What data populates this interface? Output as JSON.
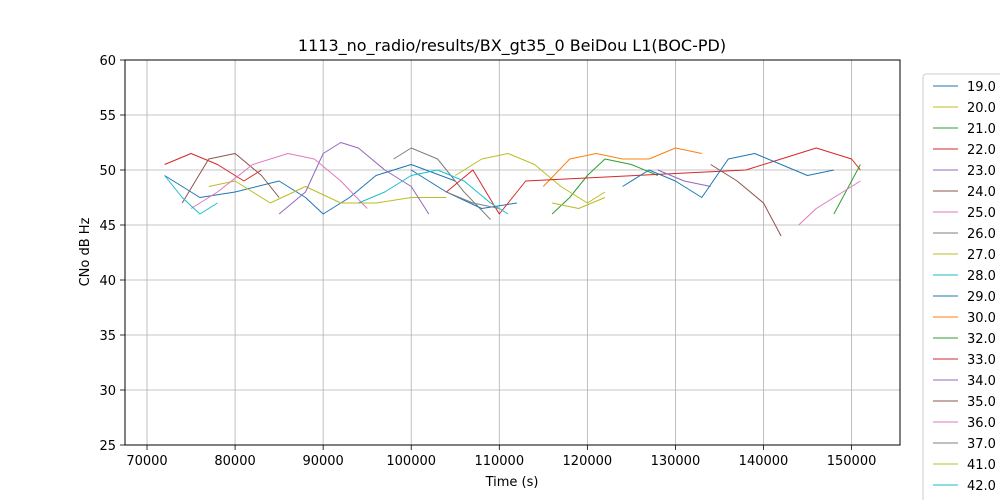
{
  "chart_data": {
    "type": "line",
    "title": "1113_no_radio/results/BX_gt35_0 BeiDou L1(BOC-PD)",
    "xlabel": "Time (s)",
    "ylabel": "CNo dB Hz",
    "xlim": [
      67500,
      155500
    ],
    "ylim": [
      25,
      60
    ],
    "xticks": [
      70000,
      80000,
      90000,
      100000,
      110000,
      120000,
      130000,
      140000,
      150000
    ],
    "xtick_labels": [
      "70000",
      "80000",
      "90000",
      "100000",
      "110000",
      "120000",
      "130000",
      "140000",
      "150000"
    ],
    "yticks": [
      25,
      30,
      35,
      40,
      45,
      50,
      55,
      60
    ],
    "ytick_labels": [
      "25",
      "30",
      "35",
      "40",
      "45",
      "50",
      "55",
      "60"
    ],
    "grid": true,
    "legend_position": "right-outside",
    "series": [
      {
        "name": "19.0",
        "color": "#1f77b4",
        "x": [
          72000,
          76000,
          80000,
          85000,
          88000,
          90000,
          93000,
          96000,
          100000,
          105000
        ],
        "y": [
          49.5,
          47.5,
          48.0,
          49.0,
          47.5,
          46.0,
          47.5,
          49.5,
          50.5,
          49.0
        ]
      },
      {
        "name": "20.0",
        "color": "#bcbd22",
        "x": [
          77000,
          80000,
          84000,
          88000,
          92000,
          96000,
          100000,
          104000
        ],
        "y": [
          48.5,
          49.0,
          47.0,
          48.5,
          47.0,
          47.0,
          47.5,
          47.5
        ]
      },
      {
        "name": "21.0",
        "color": "#2ca02c",
        "x": [
          116000,
          118000,
          120000,
          122000,
          125000,
          128000
        ],
        "y": [
          46.0,
          47.5,
          49.5,
          51.0,
          50.5,
          49.5
        ]
      },
      {
        "name": "22.0",
        "color": "#d62728",
        "x": [
          72000,
          75000,
          78000,
          81000,
          83000
        ],
        "y": [
          50.5,
          51.5,
          50.5,
          49.0,
          50.0
        ]
      },
      {
        "name": "23.0",
        "color": "#9467bd",
        "x": [
          85000,
          88000,
          90000,
          92000,
          94000,
          97000,
          100000,
          102000
        ],
        "y": [
          46.0,
          48.0,
          51.5,
          52.5,
          52.0,
          50.0,
          48.5,
          46.0
        ]
      },
      {
        "name": "24.0",
        "color": "#8c564b",
        "x": [
          74000,
          77000,
          80000,
          83000,
          85000
        ],
        "y": [
          47.0,
          51.0,
          51.5,
          49.5,
          47.5
        ]
      },
      {
        "name": "25.0",
        "color": "#e377c2",
        "x": [
          75000,
          78000,
          82000,
          86000,
          89000,
          92000,
          95000
        ],
        "y": [
          46.5,
          48.0,
          50.5,
          51.5,
          51.0,
          49.0,
          46.5
        ]
      },
      {
        "name": "26.0",
        "color": "#7f7f7f",
        "x": [
          98000,
          100000,
          103000,
          106000,
          109000
        ],
        "y": [
          51.0,
          52.0,
          51.0,
          48.0,
          45.5
        ]
      },
      {
        "name": "27.0",
        "color": "#bcbd22",
        "x": [
          105000,
          108000,
          111000,
          114000,
          117000,
          120000,
          122000
        ],
        "y": [
          49.5,
          51.0,
          51.5,
          50.5,
          48.5,
          47.0,
          48.0
        ]
      },
      {
        "name": "28.0",
        "color": "#17becf",
        "x": [
          72000,
          74000,
          76000,
          78000
        ],
        "y": [
          49.5,
          47.5,
          46.0,
          47.0
        ]
      },
      {
        "name": "29.0",
        "color": "#1f77b4",
        "x": [
          100000,
          104000,
          108000,
          112000
        ],
        "y": [
          50.0,
          48.0,
          46.5,
          47.0
        ]
      },
      {
        "name": "30.0",
        "color": "#ff7f0e",
        "x": [
          115000,
          118000,
          121000,
          124000,
          127000,
          130000,
          133000
        ],
        "y": [
          48.5,
          51.0,
          51.5,
          51.0,
          51.0,
          52.0,
          51.5
        ]
      },
      {
        "name": "32.0",
        "color": "#2ca02c",
        "x": [
          148000,
          150000,
          151000
        ],
        "y": [
          46.0,
          49.0,
          50.5
        ]
      },
      {
        "name": "33.0",
        "color": "#d62728",
        "x": [
          104000,
          107000,
          110000,
          113000,
          138000,
          142000,
          146000,
          150000,
          151000
        ],
        "y": [
          48.0,
          50.0,
          46.0,
          49.0,
          50.0,
          51.0,
          52.0,
          51.0,
          50.0
        ]
      },
      {
        "name": "34.0",
        "color": "#9467bd",
        "x": [
          128000,
          131000,
          134000
        ],
        "y": [
          50.0,
          49.0,
          48.5
        ]
      },
      {
        "name": "35.0",
        "color": "#8c564b",
        "x": [
          134000,
          137000,
          140000,
          142000
        ],
        "y": [
          50.5,
          49.0,
          47.0,
          44.0
        ]
      },
      {
        "name": "36.0",
        "color": "#e377c2",
        "x": [
          144000,
          146000,
          148000,
          150000,
          151000
        ],
        "y": [
          45.0,
          46.5,
          47.5,
          48.5,
          49.0
        ]
      },
      {
        "name": "37.0",
        "color": "#7f7f7f",
        "x": [
          104000,
          107000,
          110000
        ],
        "y": [
          48.0,
          47.0,
          46.5
        ]
      },
      {
        "name": "41.0",
        "color": "#bcbd22",
        "x": [
          116000,
          119000,
          122000
        ],
        "y": [
          47.0,
          46.5,
          47.5
        ]
      },
      {
        "name": "42.0",
        "color": "#17becf",
        "x": [
          94000,
          97000,
          100000,
          103000,
          106000,
          109000,
          111000
        ],
        "y": [
          47.0,
          48.0,
          49.5,
          50.0,
          49.0,
          47.0,
          46.0
        ]
      },
      {
        "name": "",
        "color": "#1f77b4",
        "x": [
          124000,
          127000,
          130000,
          133000,
          136000,
          139000,
          142000,
          145000,
          148000
        ],
        "y": [
          48.5,
          50.0,
          49.0,
          47.5,
          51.0,
          51.5,
          50.5,
          49.5,
          50.0
        ]
      }
    ]
  }
}
